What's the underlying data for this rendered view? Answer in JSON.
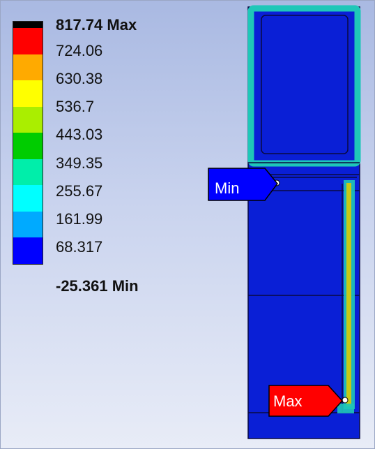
{
  "legend": {
    "max_label": "817.74 Max",
    "min_label": "-25.361 Min",
    "levels": [
      "724.06",
      "630.38",
      "536.7",
      "443.03",
      "349.35",
      "255.67",
      "161.99",
      "68.317"
    ],
    "colors": [
      "#000000",
      "#ff0000",
      "#ffaa00",
      "#ffff00",
      "#aaee00",
      "#00cc00",
      "#00eeaa",
      "#00ffff",
      "#00aaff",
      "#0000ff"
    ]
  },
  "probes": {
    "min_tag": {
      "label": "Min",
      "color": "#0000ff"
    },
    "max_tag": {
      "label": "Max",
      "color": "#ff0000"
    }
  },
  "model_colors": {
    "body": "#0a1fd6",
    "edge_glow": "#1fc7b8",
    "hot_strip": "#c8c814"
  }
}
